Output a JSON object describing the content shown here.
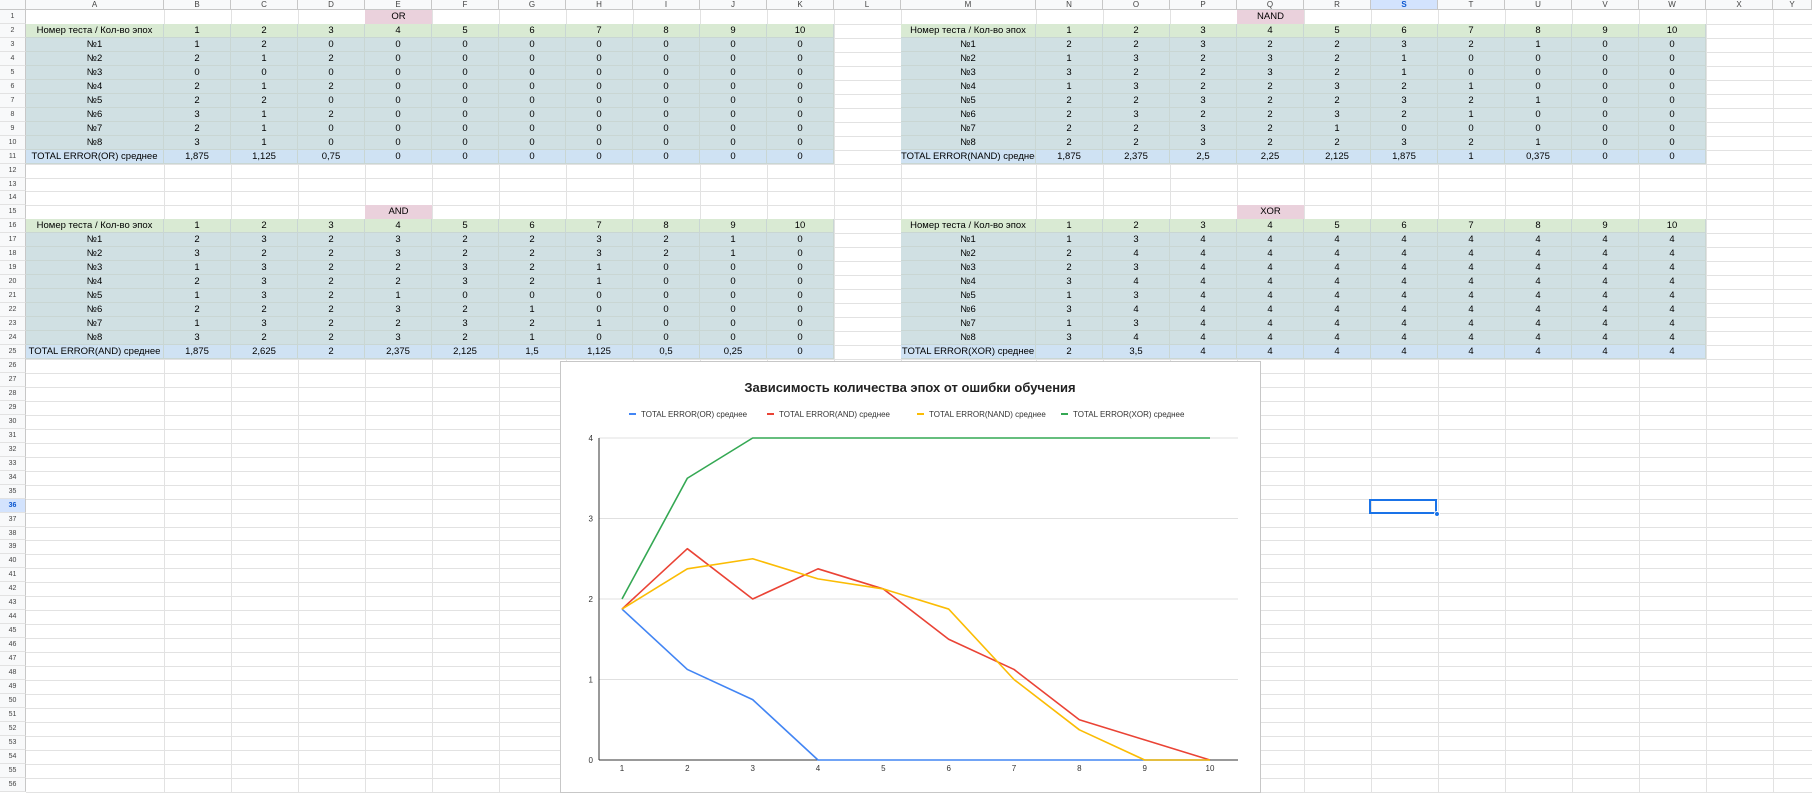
{
  "columns": [
    "A",
    "B",
    "C",
    "D",
    "E",
    "F",
    "G",
    "H",
    "I",
    "J",
    "K",
    "L",
    "M",
    "N",
    "O",
    "P",
    "Q",
    "R",
    "S",
    "T",
    "U",
    "V",
    "W",
    "X",
    "Y"
  ],
  "rows": [
    "1",
    "2",
    "3",
    "4",
    "5",
    "6",
    "7",
    "8",
    "9",
    "10",
    "11",
    "12",
    "13",
    "14",
    "15",
    "16",
    "17",
    "18",
    "19",
    "20",
    "21",
    "22",
    "23",
    "24",
    "25",
    "26",
    "27",
    "28",
    "29",
    "30",
    "31",
    "32",
    "33",
    "34",
    "35",
    "36",
    "37",
    "38",
    "39",
    "40",
    "41",
    "42",
    "43",
    "44",
    "45",
    "46",
    "47",
    "48",
    "49",
    "50",
    "51",
    "52",
    "53",
    "54",
    "55",
    "56"
  ],
  "selected_column": "S",
  "selected_row": "36",
  "colors": {
    "header_green": "#d9ead3",
    "body_blue": "#d0e0e3",
    "total_blue": "#cfe2f3",
    "title_pink": "#ead1dc",
    "selection": "#1a73e8"
  },
  "tables": [
    {
      "name": "OR",
      "header_label": "Номер теста / Кол-во эпох",
      "epochs": [
        "1",
        "2",
        "3",
        "4",
        "5",
        "6",
        "7",
        "8",
        "9",
        "10"
      ],
      "rows": [
        {
          "label": "№1",
          "values": [
            "1",
            "2",
            "0",
            "0",
            "0",
            "0",
            "0",
            "0",
            "0",
            "0"
          ]
        },
        {
          "label": "№2",
          "values": [
            "2",
            "1",
            "2",
            "0",
            "0",
            "0",
            "0",
            "0",
            "0",
            "0"
          ]
        },
        {
          "label": "№3",
          "values": [
            "0",
            "0",
            "0",
            "0",
            "0",
            "0",
            "0",
            "0",
            "0",
            "0"
          ]
        },
        {
          "label": "№4",
          "values": [
            "2",
            "1",
            "2",
            "0",
            "0",
            "0",
            "0",
            "0",
            "0",
            "0"
          ]
        },
        {
          "label": "№5",
          "values": [
            "2",
            "2",
            "0",
            "0",
            "0",
            "0",
            "0",
            "0",
            "0",
            "0"
          ]
        },
        {
          "label": "№6",
          "values": [
            "3",
            "1",
            "2",
            "0",
            "0",
            "0",
            "0",
            "0",
            "0",
            "0"
          ]
        },
        {
          "label": "№7",
          "values": [
            "2",
            "1",
            "0",
            "0",
            "0",
            "0",
            "0",
            "0",
            "0",
            "0"
          ]
        },
        {
          "label": "№8",
          "values": [
            "3",
            "1",
            "0",
            "0",
            "0",
            "0",
            "0",
            "0",
            "0",
            "0"
          ]
        }
      ],
      "total": {
        "label": "TOTAL ERROR(OR) среднее",
        "values": [
          "1,875",
          "1,125",
          "0,75",
          "0",
          "0",
          "0",
          "0",
          "0",
          "0",
          "0"
        ]
      }
    },
    {
      "name": "NAND",
      "header_label": "Номер теста / Кол-во эпох",
      "epochs": [
        "1",
        "2",
        "3",
        "4",
        "5",
        "6",
        "7",
        "8",
        "9",
        "10"
      ],
      "rows": [
        {
          "label": "№1",
          "values": [
            "2",
            "2",
            "3",
            "2",
            "2",
            "3",
            "2",
            "1",
            "0",
            "0"
          ]
        },
        {
          "label": "№2",
          "values": [
            "1",
            "3",
            "2",
            "3",
            "2",
            "1",
            "0",
            "0",
            "0",
            "0"
          ]
        },
        {
          "label": "№3",
          "values": [
            "3",
            "2",
            "2",
            "3",
            "2",
            "1",
            "0",
            "0",
            "0",
            "0"
          ]
        },
        {
          "label": "№4",
          "values": [
            "1",
            "3",
            "2",
            "2",
            "3",
            "2",
            "1",
            "0",
            "0",
            "0"
          ]
        },
        {
          "label": "№5",
          "values": [
            "2",
            "2",
            "3",
            "2",
            "2",
            "3",
            "2",
            "1",
            "0",
            "0"
          ]
        },
        {
          "label": "№6",
          "values": [
            "2",
            "3",
            "2",
            "2",
            "3",
            "2",
            "1",
            "0",
            "0",
            "0"
          ]
        },
        {
          "label": "№7",
          "values": [
            "2",
            "2",
            "3",
            "2",
            "1",
            "0",
            "0",
            "0",
            "0",
            "0"
          ]
        },
        {
          "label": "№8",
          "values": [
            "2",
            "2",
            "3",
            "2",
            "2",
            "3",
            "2",
            "1",
            "0",
            "0"
          ]
        }
      ],
      "total": {
        "label": "TOTAL ERROR(NAND) среднее",
        "values": [
          "1,875",
          "2,375",
          "2,5",
          "2,25",
          "2,125",
          "1,875",
          "1",
          "0,375",
          "0",
          "0"
        ]
      }
    },
    {
      "name": "AND",
      "header_label": "Номер теста / Кол-во эпох",
      "epochs": [
        "1",
        "2",
        "3",
        "4",
        "5",
        "6",
        "7",
        "8",
        "9",
        "10"
      ],
      "rows": [
        {
          "label": "№1",
          "values": [
            "2",
            "3",
            "2",
            "3",
            "2",
            "2",
            "3",
            "2",
            "1",
            "0"
          ]
        },
        {
          "label": "№2",
          "values": [
            "3",
            "2",
            "2",
            "3",
            "2",
            "2",
            "3",
            "2",
            "1",
            "0"
          ]
        },
        {
          "label": "№3",
          "values": [
            "1",
            "3",
            "2",
            "2",
            "3",
            "2",
            "1",
            "0",
            "0",
            "0"
          ]
        },
        {
          "label": "№4",
          "values": [
            "2",
            "3",
            "2",
            "2",
            "3",
            "2",
            "1",
            "0",
            "0",
            "0"
          ]
        },
        {
          "label": "№5",
          "values": [
            "1",
            "3",
            "2",
            "1",
            "0",
            "0",
            "0",
            "0",
            "0",
            "0"
          ]
        },
        {
          "label": "№6",
          "values": [
            "2",
            "2",
            "2",
            "3",
            "2",
            "1",
            "0",
            "0",
            "0",
            "0"
          ]
        },
        {
          "label": "№7",
          "values": [
            "1",
            "3",
            "2",
            "2",
            "3",
            "2",
            "1",
            "0",
            "0",
            "0"
          ]
        },
        {
          "label": "№8",
          "values": [
            "3",
            "2",
            "2",
            "3",
            "2",
            "1",
            "0",
            "0",
            "0",
            "0"
          ]
        }
      ],
      "total": {
        "label": "TOTAL ERROR(AND) среднее",
        "values": [
          "1,875",
          "2,625",
          "2",
          "2,375",
          "2,125",
          "1,5",
          "1,125",
          "0,5",
          "0,25",
          "0"
        ]
      }
    },
    {
      "name": "XOR",
      "header_label": "Номер теста / Кол-во эпох",
      "epochs": [
        "1",
        "2",
        "3",
        "4",
        "5",
        "6",
        "7",
        "8",
        "9",
        "10"
      ],
      "rows": [
        {
          "label": "№1",
          "values": [
            "1",
            "3",
            "4",
            "4",
            "4",
            "4",
            "4",
            "4",
            "4",
            "4"
          ]
        },
        {
          "label": "№2",
          "values": [
            "2",
            "4",
            "4",
            "4",
            "4",
            "4",
            "4",
            "4",
            "4",
            "4"
          ]
        },
        {
          "label": "№3",
          "values": [
            "2",
            "3",
            "4",
            "4",
            "4",
            "4",
            "4",
            "4",
            "4",
            "4"
          ]
        },
        {
          "label": "№4",
          "values": [
            "3",
            "4",
            "4",
            "4",
            "4",
            "4",
            "4",
            "4",
            "4",
            "4"
          ]
        },
        {
          "label": "№5",
          "values": [
            "1",
            "3",
            "4",
            "4",
            "4",
            "4",
            "4",
            "4",
            "4",
            "4"
          ]
        },
        {
          "label": "№6",
          "values": [
            "3",
            "4",
            "4",
            "4",
            "4",
            "4",
            "4",
            "4",
            "4",
            "4"
          ]
        },
        {
          "label": "№7",
          "values": [
            "1",
            "3",
            "4",
            "4",
            "4",
            "4",
            "4",
            "4",
            "4",
            "4"
          ]
        },
        {
          "label": "№8",
          "values": [
            "3",
            "4",
            "4",
            "4",
            "4",
            "4",
            "4",
            "4",
            "4",
            "4"
          ]
        }
      ],
      "total": {
        "label": "TOTAL ERROR(XOR) среднее",
        "values": [
          "2",
          "3,5",
          "4",
          "4",
          "4",
          "4",
          "4",
          "4",
          "4",
          "4"
        ]
      }
    }
  ],
  "chart_data": {
    "type": "line",
    "title": "Зависимость количества эпох от ошибки обучения",
    "x": [
      1,
      2,
      3,
      4,
      5,
      6,
      7,
      8,
      9,
      10
    ],
    "ylim": [
      0,
      4
    ],
    "yticks": [
      0,
      1,
      2,
      3,
      4
    ],
    "grid": true,
    "legend": "top",
    "series": [
      {
        "name": "TOTAL ERROR(OR) среднее",
        "color": "#4285f4",
        "values": [
          1.875,
          1.125,
          0.75,
          0,
          0,
          0,
          0,
          0,
          0,
          0
        ]
      },
      {
        "name": "TOTAL ERROR(AND) среднее",
        "color": "#ea4335",
        "values": [
          1.875,
          2.625,
          2,
          2.375,
          2.125,
          1.5,
          1.125,
          0.5,
          0.25,
          0
        ]
      },
      {
        "name": "TOTAL ERROR(NAND) среднее",
        "color": "#fbbc04",
        "values": [
          1.875,
          2.375,
          2.5,
          2.25,
          2.125,
          1.875,
          1,
          0.375,
          0,
          0
        ]
      },
      {
        "name": "TOTAL ERROR(XOR) среднее",
        "color": "#34a853",
        "values": [
          2,
          3.5,
          4,
          4,
          4,
          4,
          4,
          4,
          4,
          4
        ]
      }
    ]
  }
}
